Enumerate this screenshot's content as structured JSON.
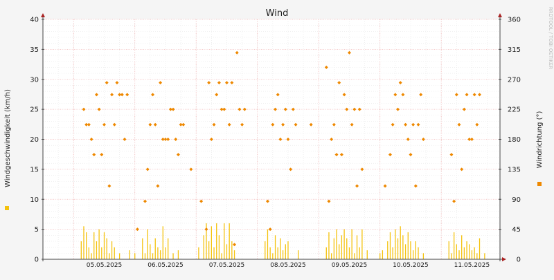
{
  "watermark": "RRDTOOL / TOBI OETIKER",
  "chart_data": {
    "type": "line",
    "title": "Wind",
    "ylabel_left": "Windgeschwindigkeit (km/h)",
    "ylabel_right": "Windrichtung (°)",
    "ylim_left": [
      0,
      40
    ],
    "ylim_right": [
      0,
      360
    ],
    "yticks_left": [
      0,
      5,
      10,
      15,
      20,
      25,
      30,
      35,
      40
    ],
    "yticks_right": [
      0,
      45,
      90,
      135,
      180,
      225,
      270,
      315,
      360
    ],
    "xlim": [
      "2025-05-04T12:00",
      "2025-05-11T23:00"
    ],
    "x_tick_labels": [
      "05.05.2025",
      "06.05.2025",
      "07.05.2025",
      "08.05.2025",
      "09.05.2025",
      "10.05.2025",
      "11.05.2025"
    ],
    "grid": true,
    "colors": {
      "background": "#f5f5f5",
      "plot": "#ffffff",
      "major_grid": "#f2b8b8",
      "minor_grid": "#e2e2e2",
      "axis": "#444444",
      "arrow": "#aa2222",
      "speed": "#f4c20d",
      "direction": "#ee8800"
    },
    "series": [
      {
        "name": "",
        "kind": "bars",
        "axis": "left",
        "unit": "km/h",
        "points": [
          [
            "2025-05-05T03:00",
            3.0
          ],
          [
            "2025-05-05T04:00",
            5.5
          ],
          [
            "2025-05-05T05:00",
            4.5
          ],
          [
            "2025-05-05T06:00",
            2.0
          ],
          [
            "2025-05-05T07:00",
            1.0
          ],
          [
            "2025-05-05T08:00",
            4.5
          ],
          [
            "2025-05-05T09:00",
            3.0
          ],
          [
            "2025-05-05T10:00",
            5.0
          ],
          [
            "2025-05-05T11:00",
            2.0
          ],
          [
            "2025-05-05T12:00",
            4.5
          ],
          [
            "2025-05-05T13:00",
            3.5
          ],
          [
            "2025-05-05T14:00",
            1.0
          ],
          [
            "2025-05-05T15:00",
            3.0
          ],
          [
            "2025-05-05T16:00",
            2.0
          ],
          [
            "2025-05-05T18:00",
            1.0
          ],
          [
            "2025-05-05T22:00",
            1.5
          ],
          [
            "2025-05-06T00:00",
            1.0
          ],
          [
            "2025-05-06T03:00",
            3.5
          ],
          [
            "2025-05-06T04:00",
            1.0
          ],
          [
            "2025-05-06T05:00",
            5.0
          ],
          [
            "2025-05-06T06:00",
            2.5
          ],
          [
            "2025-05-06T07:00",
            1.0
          ],
          [
            "2025-05-06T08:00",
            3.5
          ],
          [
            "2025-05-06T09:00",
            2.0
          ],
          [
            "2025-05-06T10:00",
            1.5
          ],
          [
            "2025-05-06T11:00",
            5.5
          ],
          [
            "2025-05-06T12:00",
            2.0
          ],
          [
            "2025-05-06T13:00",
            3.5
          ],
          [
            "2025-05-06T15:00",
            1.0
          ],
          [
            "2025-05-06T17:00",
            1.5
          ],
          [
            "2025-05-07T01:00",
            2.0
          ],
          [
            "2025-05-07T03:00",
            4.0
          ],
          [
            "2025-05-07T04:00",
            6.0
          ],
          [
            "2025-05-07T05:00",
            3.0
          ],
          [
            "2025-05-07T06:00",
            5.5
          ],
          [
            "2025-05-07T07:00",
            2.0
          ],
          [
            "2025-05-07T08:00",
            6.0
          ],
          [
            "2025-05-07T09:00",
            4.0
          ],
          [
            "2025-05-07T10:00",
            1.0
          ],
          [
            "2025-05-07T11:00",
            6.0
          ],
          [
            "2025-05-07T12:00",
            2.5
          ],
          [
            "2025-05-07T13:00",
            6.0
          ],
          [
            "2025-05-07T14:00",
            3.0
          ],
          [
            "2025-05-07T15:00",
            1.5
          ],
          [
            "2025-05-08T03:00",
            3.0
          ],
          [
            "2025-05-08T04:00",
            5.0
          ],
          [
            "2025-05-08T05:00",
            2.0
          ],
          [
            "2025-05-08T06:00",
            1.0
          ],
          [
            "2025-05-08T07:00",
            4.0
          ],
          [
            "2025-05-08T08:00",
            2.0
          ],
          [
            "2025-05-08T09:00",
            3.5
          ],
          [
            "2025-05-08T10:00",
            1.5
          ],
          [
            "2025-05-08T11:00",
            2.5
          ],
          [
            "2025-05-08T12:00",
            3.0
          ],
          [
            "2025-05-08T16:00",
            1.5
          ],
          [
            "2025-05-09T03:00",
            2.0
          ],
          [
            "2025-05-09T04:00",
            4.5
          ],
          [
            "2025-05-09T05:00",
            1.0
          ],
          [
            "2025-05-09T06:00",
            3.5
          ],
          [
            "2025-05-09T07:00",
            5.0
          ],
          [
            "2025-05-09T08:00",
            2.5
          ],
          [
            "2025-05-09T09:00",
            4.0
          ],
          [
            "2025-05-09T10:00",
            5.0
          ],
          [
            "2025-05-09T11:00",
            3.5
          ],
          [
            "2025-05-09T12:00",
            2.0
          ],
          [
            "2025-05-09T13:00",
            5.0
          ],
          [
            "2025-05-09T14:00",
            1.0
          ],
          [
            "2025-05-09T15:00",
            4.0
          ],
          [
            "2025-05-09T16:00",
            2.0
          ],
          [
            "2025-05-09T17:00",
            5.0
          ],
          [
            "2025-05-09T19:00",
            1.5
          ],
          [
            "2025-05-10T00:00",
            1.0
          ],
          [
            "2025-05-10T01:00",
            1.5
          ],
          [
            "2025-05-10T03:00",
            3.0
          ],
          [
            "2025-05-10T04:00",
            4.5
          ],
          [
            "2025-05-10T05:00",
            2.0
          ],
          [
            "2025-05-10T06:00",
            5.0
          ],
          [
            "2025-05-10T07:00",
            3.5
          ],
          [
            "2025-05-10T08:00",
            5.5
          ],
          [
            "2025-05-10T09:00",
            4.0
          ],
          [
            "2025-05-10T10:00",
            2.5
          ],
          [
            "2025-05-10T11:00",
            4.5
          ],
          [
            "2025-05-10T12:00",
            3.0
          ],
          [
            "2025-05-10T13:00",
            1.5
          ],
          [
            "2025-05-10T14:00",
            3.0
          ],
          [
            "2025-05-10T15:00",
            2.0
          ],
          [
            "2025-05-10T17:00",
            1.0
          ],
          [
            "2025-05-11T03:00",
            3.0
          ],
          [
            "2025-05-11T04:00",
            1.0
          ],
          [
            "2025-05-11T05:00",
            4.5
          ],
          [
            "2025-05-11T06:00",
            2.5
          ],
          [
            "2025-05-11T07:00",
            1.5
          ],
          [
            "2025-05-11T08:00",
            4.0
          ],
          [
            "2025-05-11T09:00",
            2.0
          ],
          [
            "2025-05-11T10:00",
            3.0
          ],
          [
            "2025-05-11T11:00",
            2.5
          ],
          [
            "2025-05-11T12:00",
            1.5
          ],
          [
            "2025-05-11T13:00",
            2.0
          ],
          [
            "2025-05-11T14:00",
            1.0
          ],
          [
            "2025-05-11T15:00",
            3.5
          ],
          [
            "2025-05-11T17:00",
            1.0
          ]
        ]
      },
      {
        "name": "",
        "kind": "points",
        "axis": "right",
        "unit": "°",
        "points": [
          [
            "2025-05-05T04:00",
            225
          ],
          [
            "2025-05-05T05:00",
            202
          ],
          [
            "2025-05-05T06:00",
            202
          ],
          [
            "2025-05-05T07:00",
            180
          ],
          [
            "2025-05-05T08:00",
            157
          ],
          [
            "2025-05-05T09:00",
            247
          ],
          [
            "2025-05-05T10:00",
            225
          ],
          [
            "2025-05-05T11:00",
            157
          ],
          [
            "2025-05-05T12:00",
            202
          ],
          [
            "2025-05-05T13:00",
            265
          ],
          [
            "2025-05-05T14:00",
            110
          ],
          [
            "2025-05-05T15:00",
            247
          ],
          [
            "2025-05-05T16:00",
            202
          ],
          [
            "2025-05-05T17:00",
            265
          ],
          [
            "2025-05-05T18:00",
            247
          ],
          [
            "2025-05-05T19:00",
            247
          ],
          [
            "2025-05-05T20:00",
            180
          ],
          [
            "2025-05-05T21:00",
            247
          ],
          [
            "2025-05-06T01:00",
            45
          ],
          [
            "2025-05-06T04:00",
            87
          ],
          [
            "2025-05-06T05:00",
            135
          ],
          [
            "2025-05-06T06:00",
            202
          ],
          [
            "2025-05-06T07:00",
            247
          ],
          [
            "2025-05-06T08:00",
            202
          ],
          [
            "2025-05-06T09:00",
            110
          ],
          [
            "2025-05-06T10:00",
            265
          ],
          [
            "2025-05-06T11:00",
            180
          ],
          [
            "2025-05-06T12:00",
            180
          ],
          [
            "2025-05-06T13:00",
            180
          ],
          [
            "2025-05-06T14:00",
            225
          ],
          [
            "2025-05-06T15:00",
            225
          ],
          [
            "2025-05-06T16:00",
            180
          ],
          [
            "2025-05-06T17:00",
            157
          ],
          [
            "2025-05-06T18:00",
            202
          ],
          [
            "2025-05-06T19:00",
            202
          ],
          [
            "2025-05-06T22:00",
            135
          ],
          [
            "2025-05-07T02:00",
            87
          ],
          [
            "2025-05-07T04:00",
            45
          ],
          [
            "2025-05-07T05:00",
            265
          ],
          [
            "2025-05-07T06:00",
            180
          ],
          [
            "2025-05-07T07:00",
            202
          ],
          [
            "2025-05-07T08:00",
            247
          ],
          [
            "2025-05-07T09:00",
            265
          ],
          [
            "2025-05-07T10:00",
            225
          ],
          [
            "2025-05-07T11:00",
            225
          ],
          [
            "2025-05-07T12:00",
            265
          ],
          [
            "2025-05-07T13:00",
            202
          ],
          [
            "2025-05-07T14:00",
            265
          ],
          [
            "2025-05-07T15:00",
            22
          ],
          [
            "2025-05-07T16:00",
            310
          ],
          [
            "2025-05-07T17:00",
            225
          ],
          [
            "2025-05-07T18:00",
            202
          ],
          [
            "2025-05-07T19:00",
            225
          ],
          [
            "2025-05-08T04:00",
            87
          ],
          [
            "2025-05-08T05:00",
            45
          ],
          [
            "2025-05-08T06:00",
            202
          ],
          [
            "2025-05-08T07:00",
            225
          ],
          [
            "2025-05-08T08:00",
            247
          ],
          [
            "2025-05-08T09:00",
            180
          ],
          [
            "2025-05-08T10:00",
            202
          ],
          [
            "2025-05-08T11:00",
            225
          ],
          [
            "2025-05-08T12:00",
            180
          ],
          [
            "2025-05-08T13:00",
            135
          ],
          [
            "2025-05-08T14:00",
            225
          ],
          [
            "2025-05-08T15:00",
            202
          ],
          [
            "2025-05-08T21:00",
            202
          ],
          [
            "2025-05-09T03:00",
            288
          ],
          [
            "2025-05-09T04:00",
            87
          ],
          [
            "2025-05-09T05:00",
            180
          ],
          [
            "2025-05-09T06:00",
            202
          ],
          [
            "2025-05-09T07:00",
            157
          ],
          [
            "2025-05-09T08:00",
            265
          ],
          [
            "2025-05-09T09:00",
            157
          ],
          [
            "2025-05-09T10:00",
            247
          ],
          [
            "2025-05-09T11:00",
            225
          ],
          [
            "2025-05-09T12:00",
            310
          ],
          [
            "2025-05-09T13:00",
            202
          ],
          [
            "2025-05-09T14:00",
            225
          ],
          [
            "2025-05-09T15:00",
            110
          ],
          [
            "2025-05-09T16:00",
            225
          ],
          [
            "2025-05-09T17:00",
            135
          ],
          [
            "2025-05-10T02:00",
            110
          ],
          [
            "2025-05-10T04:00",
            157
          ],
          [
            "2025-05-10T05:00",
            202
          ],
          [
            "2025-05-10T06:00",
            247
          ],
          [
            "2025-05-10T07:00",
            225
          ],
          [
            "2025-05-10T08:00",
            265
          ],
          [
            "2025-05-10T09:00",
            247
          ],
          [
            "2025-05-10T10:00",
            202
          ],
          [
            "2025-05-10T11:00",
            180
          ],
          [
            "2025-05-10T12:00",
            157
          ],
          [
            "2025-05-10T13:00",
            202
          ],
          [
            "2025-05-10T14:00",
            110
          ],
          [
            "2025-05-10T15:00",
            202
          ],
          [
            "2025-05-10T16:00",
            247
          ],
          [
            "2025-05-10T17:00",
            180
          ],
          [
            "2025-05-11T04:00",
            157
          ],
          [
            "2025-05-11T05:00",
            87
          ],
          [
            "2025-05-11T06:00",
            247
          ],
          [
            "2025-05-11T07:00",
            202
          ],
          [
            "2025-05-11T08:00",
            135
          ],
          [
            "2025-05-11T09:00",
            225
          ],
          [
            "2025-05-11T10:00",
            247
          ],
          [
            "2025-05-11T11:00",
            180
          ],
          [
            "2025-05-11T12:00",
            180
          ],
          [
            "2025-05-11T13:00",
            247
          ],
          [
            "2025-05-11T14:00",
            202
          ],
          [
            "2025-05-11T15:00",
            247
          ]
        ]
      }
    ]
  }
}
